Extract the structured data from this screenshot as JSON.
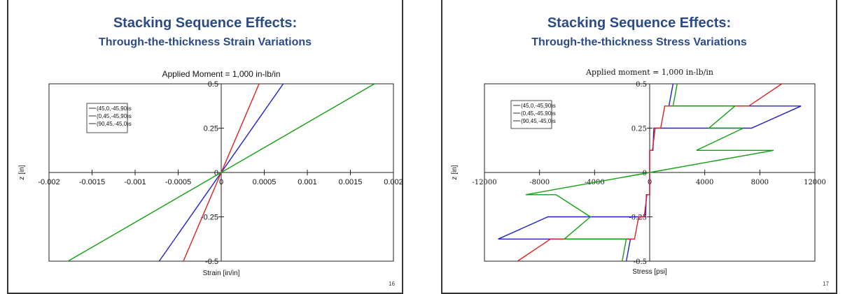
{
  "slides": [
    {
      "title": "Stacking Sequence Effects:",
      "subtitle": "Through-the-thickness Strain Variations",
      "page_number": "16"
    },
    {
      "title": "Stacking Sequence Effects:",
      "subtitle": "Through-the-thickness Stress Variations",
      "page_number": "17"
    }
  ],
  "chart_data": [
    {
      "type": "line",
      "title": "Applied Moment = 1,000 in-lb/in",
      "xlabel": "Strain [in/in]",
      "ylabel": "z [in]",
      "xlim": [
        -0.002,
        0.002
      ],
      "ylim": [
        -0.5,
        0.5
      ],
      "x_ticks": [
        "-0.002",
        "-0.0015",
        "-0.001",
        "-0.0005",
        "0",
        "0.0005",
        "0.001",
        "0.0015",
        "0.002"
      ],
      "y_ticks": [
        "0.5",
        "0.25",
        "0",
        "-0.25",
        "-0.5"
      ],
      "legend_position": "top-left",
      "series": [
        {
          "name": "(45,0,-45,90)s",
          "color": "#2020d0",
          "points": [
            [
              -0.00072,
              -0.5
            ],
            [
              0.00072,
              0.5
            ]
          ]
        },
        {
          "name": "(0,45,-45,90)s",
          "color": "#e02020",
          "points": [
            [
              -0.00044,
              -0.5
            ],
            [
              0.00044,
              0.5
            ]
          ]
        },
        {
          "name": "(90,45,-45,0)s",
          "color": "#10a010",
          "points": [
            [
              -0.00178,
              -0.5
            ],
            [
              0.00178,
              0.5
            ]
          ]
        }
      ]
    },
    {
      "type": "line",
      "title": "Applied moment = 1,000 in-lb/in",
      "xlabel": "Stress [psi]",
      "ylabel": "z [in]",
      "xlim": [
        -12000,
        12000
      ],
      "ylim": [
        -0.5,
        0.5
      ],
      "x_ticks": [
        "-12000",
        "-8000",
        "-4000",
        "0",
        "4000",
        "8000",
        "12000"
      ],
      "y_ticks": [
        "0.5",
        "0.25",
        "0",
        "-0.25",
        "-0.5"
      ],
      "legend_position": "top-left",
      "series": [
        {
          "name": "(45,0,-45,90)s",
          "color": "#2020d0",
          "points": [
            [
              -1700,
              -0.5
            ],
            [
              -1400,
              -0.375
            ],
            [
              -11000,
              -0.375
            ],
            [
              -7400,
              -0.25
            ],
            [
              -300,
              -0.25
            ],
            [
              -240,
              -0.125
            ],
            [
              0,
              -0.125
            ],
            [
              0,
              0
            ],
            [
              0,
              0.125
            ],
            [
              240,
              0.125
            ],
            [
              300,
              0.25
            ],
            [
              7400,
              0.25
            ],
            [
              11000,
              0.375
            ],
            [
              1400,
              0.375
            ],
            [
              1700,
              0.5
            ]
          ]
        },
        {
          "name": "(0,45,-45,90)s",
          "color": "#e02020",
          "points": [
            [
              -9600,
              -0.5
            ],
            [
              -7200,
              -0.375
            ],
            [
              -1100,
              -0.375
            ],
            [
              -800,
              -0.25
            ],
            [
              -400,
              -0.25
            ],
            [
              -200,
              -0.125
            ],
            [
              0,
              -0.125
            ],
            [
              0,
              0
            ],
            [
              0,
              0.125
            ],
            [
              200,
              0.125
            ],
            [
              400,
              0.25
            ],
            [
              800,
              0.25
            ],
            [
              1100,
              0.375
            ],
            [
              7200,
              0.375
            ],
            [
              9600,
              0.5
            ]
          ]
        },
        {
          "name": "(90,45,-45,0)s",
          "color": "#10a010",
          "points": [
            [
              -2000,
              -0.5
            ],
            [
              -1700,
              -0.375
            ],
            [
              -6200,
              -0.375
            ],
            [
              -4300,
              -0.25
            ],
            [
              -6800,
              -0.125
            ],
            [
              -9000,
              -0.125
            ],
            [
              0,
              0
            ],
            [
              9000,
              0.125
            ],
            [
              3400,
              0.125
            ],
            [
              6800,
              0.25
            ],
            [
              4300,
              0.25
            ],
            [
              6200,
              0.375
            ],
            [
              1700,
              0.375
            ],
            [
              2000,
              0.5
            ]
          ]
        }
      ]
    }
  ],
  "legend_line_color": "#333333"
}
